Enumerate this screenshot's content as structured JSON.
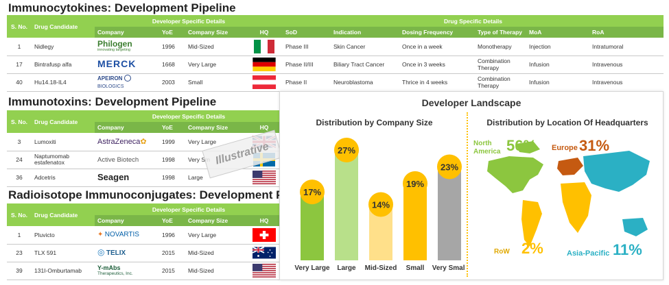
{
  "colors": {
    "header_light": "#92d050",
    "header_dark": "#7ab648",
    "accent_yellow": "#ffc000",
    "bar_green_dark": "#8cc63f",
    "bar_green_light": "#b8e08a",
    "bar_light_yellow": "#ffe08a",
    "bar_gray": "#a6a6a6",
    "map_teal": "#2bb0c4"
  },
  "headers": {
    "sno": "S. No.",
    "drug": "Drug Candidate",
    "dev_group": "Developer Specific Details",
    "drug_group": "Drug Specific Details",
    "company": "Company",
    "yoe": "YoE",
    "size": "Company Size",
    "hq": "HQ",
    "sod": "SoD",
    "indication": "Indication",
    "dosing": "Dosing Frequency",
    "therapy": "Type of Therapy",
    "moa": "MoA",
    "roa": "RoA"
  },
  "immunocytokines": {
    "title": "Immunocytokines: Development Pipeline",
    "rows": [
      {
        "sno": "1",
        "drug": "Nidlegy",
        "company": "Philogen",
        "company_tagline": "innovating targeting",
        "yoe": "1996",
        "size": "Mid-Sized",
        "hq": "italy-flag",
        "sod": "Phase III",
        "indication": "Skin Cancer",
        "dosing": "Once in a week",
        "therapy": "Monotherapy",
        "moa": "Injection",
        "roa": "Intratumoral"
      },
      {
        "sno": "17",
        "drug": "Bintrafusp alfa",
        "company": "MERCK",
        "company_tagline": "",
        "yoe": "1668",
        "size": "Very Large",
        "hq": "germany-flag",
        "sod": "Phase II/III",
        "indication": "Biliary Tract Cancer",
        "dosing": "Once in 3 weeks",
        "therapy": "Combination Therapy",
        "moa": "Infusion",
        "roa": "Intravenous"
      },
      {
        "sno": "40",
        "drug": "Hu14.18-IL4",
        "company": "APEIRON",
        "company_tagline": "BIOLOGICS",
        "yoe": "2003",
        "size": "Small",
        "hq": "austria-flag",
        "sod": "Phase II",
        "indication": "Neuroblastoma",
        "dosing": "Thrice in 4 weeks",
        "therapy": "Combination Therapy",
        "moa": "Infusion",
        "roa": "Intravenous"
      }
    ]
  },
  "immunotoxins": {
    "title": "Immunotoxins: Development Pipeline",
    "rows": [
      {
        "sno": "3",
        "drug": "Lumoxiti",
        "company": "AstraZeneca",
        "yoe": "1999",
        "size": "Very Large",
        "hq": "uk-flag"
      },
      {
        "sno": "24",
        "drug": "Naptumomab estafenatox",
        "company": "Active Biotech",
        "yoe": "1998",
        "size": "Very Sm",
        "hq": "sweden-flag"
      },
      {
        "sno": "36",
        "drug": "Adcetris",
        "company": "Seagen",
        "yoe": "1998",
        "size": "Large",
        "hq": "usa-flag"
      }
    ]
  },
  "radio": {
    "title": "Radioisotope Immunoconjugates: Development P",
    "rows": [
      {
        "sno": "1",
        "drug": "Pluvicto",
        "company": "NOVARTIS",
        "company_tagline": "",
        "yoe": "1996",
        "size": "Very Large",
        "hq": "switzerland-flag"
      },
      {
        "sno": "23",
        "drug": "TLX 591",
        "company": "TELIX",
        "company_tagline": "",
        "yoe": "2015",
        "size": "Mid-Sized",
        "hq": "australia-flag"
      },
      {
        "sno": "39",
        "drug": "131I-Omburtamab",
        "company": "Y-mAbs",
        "company_tagline": "Therapeutics, Inc.",
        "yoe": "2015",
        "size": "Mid-Sized",
        "hq": "usa-flag"
      }
    ]
  },
  "watermark": "Illustrative",
  "landscape": {
    "title": "Developer Landscape",
    "size_chart_title": "Distribution by Company Size",
    "location_title": "Distribution by Location Of Headquarters",
    "regions": [
      {
        "name": "North America",
        "line1": "North",
        "line2": "America",
        "value": "56%",
        "color": "#8cc63f"
      },
      {
        "name": "Europe",
        "value": "31%",
        "color": "#c55a11"
      },
      {
        "name": "RoW",
        "value": "2%",
        "color": "#ffc000"
      },
      {
        "name": "Asia-Pacific",
        "value": "11%",
        "color": "#2bb0c4"
      }
    ]
  },
  "chart_data": {
    "type": "bar",
    "title": "Distribution by Company Size",
    "categories": [
      "Very Large",
      "Large",
      "Mid-Sized",
      "Small",
      "Very Small"
    ],
    "values": [
      17,
      27,
      14,
      19,
      23
    ],
    "value_labels": [
      "17%",
      "27%",
      "14%",
      "19%",
      "23%"
    ],
    "bar_colors": [
      "#8cc63f",
      "#b8e08a",
      "#ffe08a",
      "#ffc000",
      "#a6a6a6"
    ],
    "ylim": [
      0,
      30
    ]
  }
}
